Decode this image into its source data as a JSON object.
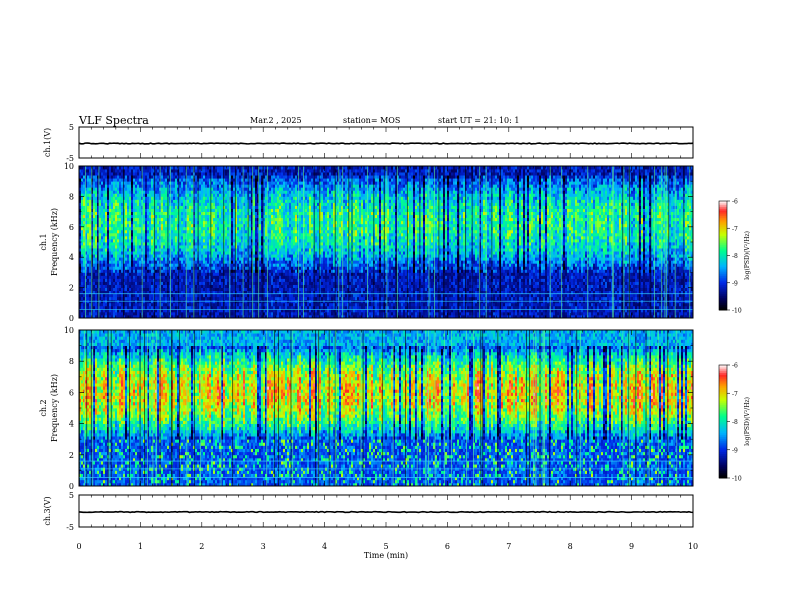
{
  "header": {
    "title": "VLF Spectra",
    "date": "Mar.2 , 2025",
    "station": "station= MOS",
    "start": "start UT =  21: 10: 1"
  },
  "chart_data": [
    {
      "type": "line",
      "name": "ch1-waveform",
      "ylabel": "ch.1(V)",
      "ylim": [
        -5,
        5
      ],
      "yticks": [
        "5",
        "-5"
      ],
      "xlim": [
        0,
        10
      ],
      "series": [
        {
          "values_description_level": 0
        }
      ]
    },
    {
      "type": "heatmap",
      "name": "ch1-spectrogram",
      "ylabel_line1": "ch.1",
      "ylabel_line2": "Frequency (kHz)",
      "ylim": [
        0,
        10
      ],
      "yticks": [
        "0",
        "2",
        "4",
        "6",
        "8",
        "10"
      ],
      "xlim": [
        0,
        10
      ],
      "colorbar": {
        "label": "log(PSD)(V²/Hz)",
        "range": [
          -10,
          -6
        ],
        "ticks": [
          "-6",
          "-7",
          "-8",
          "-9",
          "-10"
        ]
      },
      "band_khz": [
        3,
        9.5
      ],
      "intensity": "moderate"
    },
    {
      "type": "heatmap",
      "name": "ch2-spectrogram",
      "ylabel_line1": "ch.2",
      "ylabel_line2": "Frequency (kHz)",
      "ylim": [
        0,
        10
      ],
      "yticks": [
        "0",
        "2",
        "4",
        "6",
        "8",
        "10"
      ],
      "xlim": [
        0,
        10
      ],
      "colorbar": {
        "label": "log(PSD)(V²/Hz)",
        "range": [
          -10,
          -6
        ],
        "ticks": [
          "-6",
          "-7",
          "-8",
          "-9",
          "-10"
        ]
      },
      "band_khz": [
        3,
        9
      ],
      "intensity": "strong"
    },
    {
      "type": "line",
      "name": "ch3-waveform",
      "ylabel": "ch.3(V)",
      "ylim": [
        -5,
        5
      ],
      "yticks": [
        "5",
        "-5"
      ],
      "xlim": [
        0,
        10
      ],
      "xlabel": "Time (min)",
      "xticks": [
        "0",
        "1",
        "2",
        "3",
        "4",
        "5",
        "6",
        "7",
        "8",
        "9",
        "10"
      ]
    }
  ],
  "colors": {
    "background": "#000000",
    "low": "#000080",
    "mid": "#00ff80",
    "high": "#ff2020",
    "peak": "#ffffff"
  }
}
